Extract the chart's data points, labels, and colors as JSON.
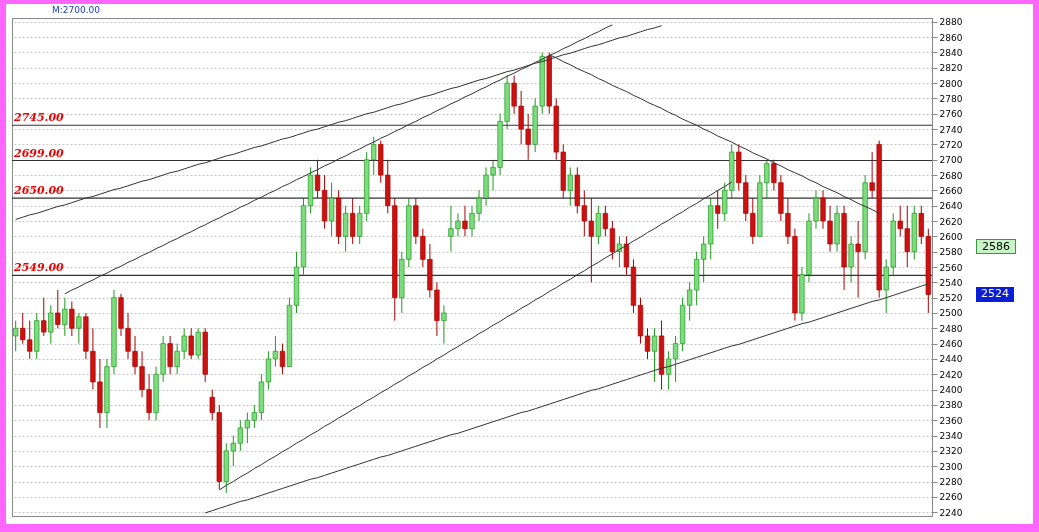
{
  "chart_data": {
    "type": "candlestick",
    "categories": [
      null,
      null,
      null,
      null,
      null,
      null,
      null,
      null,
      null,
      null,
      null,
      null,
      null,
      null,
      null,
      null,
      null,
      null,
      null,
      null,
      null,
      null,
      null,
      null,
      null,
      null,
      null,
      null,
      null,
      null,
      null,
      null,
      null,
      null,
      null,
      null,
      null,
      null,
      null,
      null,
      null,
      null,
      null,
      null,
      null,
      null,
      null,
      null,
      null,
      null,
      null,
      null,
      null,
      null,
      null,
      null,
      null,
      null,
      null,
      null,
      null,
      null,
      null,
      null,
      null,
      null,
      null,
      null,
      null,
      null,
      null,
      null,
      null,
      null,
      null,
      null,
      null,
      null,
      null,
      null,
      null,
      null,
      null,
      null,
      null,
      null,
      null,
      null,
      null,
      null,
      null,
      null,
      null,
      null,
      null,
      null,
      null,
      null,
      null,
      null,
      null,
      null,
      null,
      null,
      null,
      null,
      null,
      null,
      null,
      null,
      null,
      null,
      null,
      null,
      null,
      null,
      null,
      null,
      null,
      null,
      null,
      null,
      null,
      null,
      null,
      null,
      null,
      null,
      null,
      null,
      null
    ],
    "ohlc": [
      [
        2470,
        2490,
        2450,
        2480
      ],
      [
        2480,
        2500,
        2460,
        2465
      ],
      [
        2465,
        2490,
        2440,
        2450
      ],
      [
        2450,
        2500,
        2440,
        2490
      ],
      [
        2490,
        2520,
        2470,
        2475
      ],
      [
        2475,
        2510,
        2460,
        2500
      ],
      [
        2500,
        2530,
        2480,
        2485
      ],
      [
        2485,
        2520,
        2470,
        2505
      ],
      [
        2505,
        2515,
        2470,
        2480
      ],
      [
        2480,
        2500,
        2460,
        2495
      ],
      [
        2495,
        2500,
        2440,
        2450
      ],
      [
        2450,
        2480,
        2400,
        2410
      ],
      [
        2410,
        2440,
        2350,
        2370
      ],
      [
        2370,
        2440,
        2350,
        2430
      ],
      [
        2430,
        2530,
        2420,
        2520
      ],
      [
        2520,
        2525,
        2470,
        2480
      ],
      [
        2480,
        2500,
        2440,
        2450
      ],
      [
        2450,
        2470,
        2420,
        2430
      ],
      [
        2430,
        2450,
        2390,
        2400
      ],
      [
        2400,
        2420,
        2360,
        2370
      ],
      [
        2370,
        2430,
        2360,
        2420
      ],
      [
        2420,
        2470,
        2410,
        2460
      ],
      [
        2460,
        2470,
        2420,
        2430
      ],
      [
        2430,
        2460,
        2420,
        2450
      ],
      [
        2450,
        2480,
        2440,
        2470
      ],
      [
        2470,
        2480,
        2440,
        2445
      ],
      [
        2445,
        2480,
        2440,
        2475
      ],
      [
        2475,
        2480,
        2410,
        2420
      ],
      [
        2390,
        2400,
        2360,
        2370
      ],
      [
        2370,
        2380,
        2270,
        2280
      ],
      [
        2280,
        2330,
        2265,
        2320
      ],
      [
        2320,
        2340,
        2300,
        2330
      ],
      [
        2330,
        2360,
        2320,
        2350
      ],
      [
        2350,
        2370,
        2330,
        2360
      ],
      [
        2360,
        2380,
        2350,
        2370
      ],
      [
        2370,
        2420,
        2360,
        2410
      ],
      [
        2410,
        2450,
        2400,
        2440
      ],
      [
        2440,
        2470,
        2430,
        2450
      ],
      [
        2450,
        2460,
        2420,
        2430
      ],
      [
        2430,
        2520,
        2430,
        2510
      ],
      [
        2510,
        2580,
        2500,
        2560
      ],
      [
        2560,
        2650,
        2550,
        2640
      ],
      [
        2640,
        2690,
        2630,
        2680
      ],
      [
        2680,
        2700,
        2650,
        2660
      ],
      [
        2660,
        2680,
        2610,
        2620
      ],
      [
        2620,
        2670,
        2600,
        2650
      ],
      [
        2650,
        2660,
        2590,
        2600
      ],
      [
        2600,
        2640,
        2580,
        2630
      ],
      [
        2630,
        2650,
        2590,
        2600
      ],
      [
        2600,
        2640,
        2590,
        2630
      ],
      [
        2630,
        2710,
        2620,
        2700
      ],
      [
        2700,
        2730,
        2680,
        2720
      ],
      [
        2720,
        2725,
        2670,
        2680
      ],
      [
        2680,
        2700,
        2630,
        2640
      ],
      [
        2640,
        2650,
        2490,
        2520
      ],
      [
        2520,
        2580,
        2500,
        2570
      ],
      [
        2570,
        2650,
        2560,
        2640
      ],
      [
        2640,
        2650,
        2590,
        2600
      ],
      [
        2600,
        2610,
        2560,
        2570
      ],
      [
        2570,
        2590,
        2520,
        2530
      ],
      [
        2530,
        2540,
        2470,
        2490
      ],
      [
        2490,
        2510,
        2460,
        2500
      ],
      [
        2600,
        2640,
        2580,
        2610
      ],
      [
        2610,
        2630,
        2600,
        2620
      ],
      [
        2620,
        2640,
        2600,
        2610
      ],
      [
        2610,
        2640,
        2600,
        2630
      ],
      [
        2630,
        2660,
        2620,
        2650
      ],
      [
        2650,
        2690,
        2640,
        2680
      ],
      [
        2680,
        2700,
        2660,
        2690
      ],
      [
        2690,
        2760,
        2680,
        2750
      ],
      [
        2750,
        2810,
        2740,
        2800
      ],
      [
        2800,
        2810,
        2760,
        2770
      ],
      [
        2770,
        2790,
        2720,
        2740
      ],
      [
        2740,
        2760,
        2700,
        2720
      ],
      [
        2720,
        2780,
        2710,
        2770
      ],
      [
        2770,
        2840,
        2760,
        2835
      ],
      [
        2835,
        2840,
        2760,
        2770
      ],
      [
        2770,
        2780,
        2700,
        2710
      ],
      [
        2710,
        2720,
        2650,
        2660
      ],
      [
        2660,
        2690,
        2640,
        2680
      ],
      [
        2680,
        2690,
        2630,
        2640
      ],
      [
        2640,
        2660,
        2600,
        2620
      ],
      [
        2620,
        2650,
        2540,
        2600
      ],
      [
        2600,
        2640,
        2590,
        2630
      ],
      [
        2630,
        2640,
        2600,
        2610
      ],
      [
        2610,
        2620,
        2570,
        2580
      ],
      [
        2580,
        2600,
        2560,
        2590
      ],
      [
        2590,
        2600,
        2550,
        2560
      ],
      [
        2560,
        2570,
        2500,
        2510
      ],
      [
        2510,
        2520,
        2460,
        2470
      ],
      [
        2470,
        2480,
        2440,
        2450
      ],
      [
        2450,
        2480,
        2410,
        2470
      ],
      [
        2470,
        2490,
        2400,
        2420
      ],
      [
        2420,
        2450,
        2400,
        2440
      ],
      [
        2440,
        2470,
        2410,
        2460
      ],
      [
        2460,
        2520,
        2450,
        2510
      ],
      [
        2510,
        2540,
        2490,
        2530
      ],
      [
        2530,
        2580,
        2510,
        2570
      ],
      [
        2570,
        2600,
        2540,
        2590
      ],
      [
        2590,
        2650,
        2570,
        2640
      ],
      [
        2640,
        2660,
        2610,
        2630
      ],
      [
        2630,
        2670,
        2620,
        2660
      ],
      [
        2660,
        2720,
        2650,
        2710
      ],
      [
        2710,
        2720,
        2660,
        2670
      ],
      [
        2670,
        2680,
        2620,
        2630
      ],
      [
        2630,
        2650,
        2590,
        2600
      ],
      [
        2600,
        2680,
        2600,
        2670
      ],
      [
        2670,
        2700,
        2650,
        2695
      ],
      [
        2695,
        2700,
        2660,
        2670
      ],
      [
        2670,
        2680,
        2620,
        2630
      ],
      [
        2630,
        2650,
        2590,
        2600
      ],
      [
        2600,
        2610,
        2490,
        2500
      ],
      [
        2500,
        2560,
        2490,
        2550
      ],
      [
        2550,
        2630,
        2540,
        2620
      ],
      [
        2620,
        2660,
        2610,
        2650
      ],
      [
        2650,
        2660,
        2610,
        2620
      ],
      [
        2620,
        2640,
        2580,
        2590
      ],
      [
        2590,
        2640,
        2580,
        2630
      ],
      [
        2630,
        2640,
        2530,
        2560
      ],
      [
        2560,
        2600,
        2540,
        2590
      ],
      [
        2590,
        2620,
        2520,
        2580
      ],
      [
        2580,
        2680,
        2570,
        2670
      ],
      [
        2670,
        2710,
        2650,
        2660
      ],
      [
        2720,
        2725,
        2520,
        2530
      ],
      [
        2530,
        2570,
        2500,
        2560
      ],
      [
        2560,
        2630,
        2550,
        2620
      ],
      [
        2620,
        2640,
        2600,
        2610
      ],
      [
        2610,
        2640,
        2560,
        2580
      ],
      [
        2580,
        2640,
        2570,
        2630
      ],
      [
        2630,
        2640,
        2590,
        2600
      ],
      [
        2600,
        2610,
        2500,
        2524
      ]
    ],
    "series": [
      {
        "type": "line",
        "color": "#333333",
        "values": [
          null,
          null,
          null,
          null,
          null,
          null,
          null,
          2525,
          2530,
          2534,
          2539,
          2543,
          2548,
          2552,
          2557,
          2561,
          2566,
          2570,
          2575,
          2579,
          2584,
          2588,
          2593,
          2597,
          2602,
          2606,
          2611,
          2615,
          2620,
          2624,
          2629,
          2633,
          2638,
          2642,
          2647,
          2651,
          2656,
          2660,
          2665,
          2669,
          2674,
          2678,
          2683,
          2687,
          2692,
          2696,
          2701,
          2705,
          2710,
          2714,
          2719,
          2723,
          2728,
          2732,
          2737,
          2741,
          2746,
          2750,
          2755,
          2759,
          2764,
          2768,
          2773,
          2777,
          2782,
          2786,
          2791,
          2795,
          2800,
          2804,
          2809,
          2813,
          2818,
          2822,
          2827,
          2831,
          2836,
          2840,
          2845,
          2849,
          2854,
          2858,
          2863,
          2867,
          2872,
          2876,
          null,
          null,
          null,
          null,
          null,
          null,
          null,
          null,
          null,
          null,
          null,
          null,
          null,
          null,
          null,
          null,
          null,
          null,
          null,
          null,
          null,
          null,
          null,
          null,
          null,
          null,
          null,
          null,
          null,
          null,
          null,
          null,
          null,
          null,
          null,
          null,
          null,
          null,
          null,
          null,
          null,
          null,
          null,
          null,
          null
        ]
      },
      {
        "type": "line",
        "color": "#333333",
        "values": [
          2622,
          2625,
          2628,
          2630,
          2633,
          2636,
          2639,
          2641,
          2644,
          2647,
          2650,
          2652,
          2655,
          2658,
          2661,
          2663,
          2666,
          2669,
          2672,
          2674,
          2677,
          2680,
          2683,
          2685,
          2688,
          2691,
          2694,
          2696,
          2699,
          2702,
          2705,
          2707,
          2710,
          2713,
          2716,
          2718,
          2721,
          2724,
          2727,
          2729,
          2732,
          2735,
          2738,
          2740,
          2743,
          2746,
          2749,
          2751,
          2754,
          2757,
          2760,
          2762,
          2765,
          2768,
          2771,
          2773,
          2776,
          2779,
          2782,
          2784,
          2787,
          2790,
          2793,
          2795,
          2798,
          2801,
          2804,
          2806,
          2809,
          2812,
          2815,
          2817,
          2820,
          2823,
          2826,
          2828,
          2831,
          2834,
          2837,
          2839,
          2842,
          2845,
          2848,
          2850,
          2853,
          2856,
          2859,
          2861,
          2864,
          2867,
          2870,
          2872,
          2875,
          null,
          null,
          null,
          null,
          null,
          null,
          null,
          null,
          null,
          null,
          null,
          null,
          null,
          null,
          null,
          null,
          null,
          null,
          null,
          null,
          null,
          null,
          null,
          null,
          null,
          null,
          null,
          null,
          null,
          null,
          null,
          null,
          null,
          null,
          null,
          null,
          null,
          null
        ]
      },
      {
        "type": "line",
        "color": "#333333",
        "values": [
          null,
          null,
          null,
          null,
          null,
          null,
          null,
          null,
          null,
          null,
          null,
          null,
          null,
          null,
          null,
          null,
          null,
          null,
          null,
          null,
          null,
          null,
          null,
          null,
          null,
          null,
          null,
          2239,
          2242,
          2245,
          2248,
          2251,
          2254,
          2256,
          2259,
          2262,
          2265,
          2268,
          2271,
          2274,
          2277,
          2280,
          2283,
          2285,
          2288,
          2291,
          2294,
          2297,
          2300,
          2303,
          2306,
          2309,
          2312,
          2314,
          2317,
          2320,
          2323,
          2326,
          2329,
          2332,
          2335,
          2338,
          2341,
          2343,
          2346,
          2349,
          2352,
          2355,
          2358,
          2361,
          2364,
          2367,
          2370,
          2372,
          2375,
          2378,
          2381,
          2384,
          2387,
          2390,
          2393,
          2396,
          2399,
          2401,
          2404,
          2407,
          2410,
          2413,
          2416,
          2419,
          2422,
          2425,
          2428,
          2430,
          2433,
          2436,
          2439,
          2442,
          2445,
          2448,
          2451,
          2454,
          2457,
          2459,
          2462,
          2465,
          2468,
          2471,
          2474,
          2477,
          2480,
          2483,
          2486,
          2488,
          2491,
          2494,
          2497,
          2500,
          2503,
          2506,
          2509,
          2512,
          2515,
          2517,
          2520,
          2523,
          2526,
          2529,
          2532,
          2535,
          2538
        ]
      },
      {
        "type": "line",
        "color": "#333333",
        "values": [
          null,
          null,
          null,
          null,
          null,
          null,
          null,
          null,
          null,
          null,
          null,
          null,
          null,
          null,
          null,
          null,
          null,
          null,
          null,
          null,
          null,
          null,
          null,
          null,
          null,
          null,
          null,
          null,
          null,
          2269,
          2275,
          2280,
          2286,
          2291,
          2297,
          2302,
          2308,
          2313,
          2319,
          2324,
          2330,
          2335,
          2341,
          2346,
          2352,
          2357,
          2363,
          2368,
          2374,
          2379,
          2385,
          2390,
          2396,
          2401,
          2407,
          2412,
          2418,
          2423,
          2429,
          2434,
          2440,
          2445,
          2451,
          2456,
          2462,
          2467,
          2473,
          2478,
          2484,
          2489,
          2495,
          2500,
          2506,
          2511,
          2517,
          2522,
          2528,
          2533,
          2539,
          2544,
          2550,
          2555,
          2561,
          2566,
          2572,
          2577,
          2583,
          2588,
          2594,
          2599,
          2605,
          2610,
          2616,
          2621,
          2627,
          2632,
          2638,
          2643,
          2649,
          2654,
          2660,
          2665,
          2671,
          null,
          null,
          null,
          null,
          null,
          null,
          null,
          null,
          null,
          null,
          null,
          null,
          null,
          null,
          null,
          null,
          null,
          null,
          null,
          null,
          null,
          null,
          null,
          null,
          null,
          null,
          null,
          null
        ]
      },
      {
        "type": "line",
        "color": "#333333",
        "values": [
          null,
          null,
          null,
          null,
          null,
          null,
          null,
          null,
          null,
          null,
          null,
          null,
          null,
          null,
          null,
          null,
          null,
          null,
          null,
          null,
          null,
          null,
          null,
          null,
          null,
          null,
          null,
          null,
          null,
          null,
          null,
          null,
          null,
          null,
          null,
          null,
          null,
          null,
          null,
          null,
          null,
          null,
          null,
          null,
          null,
          null,
          null,
          null,
          null,
          null,
          null,
          null,
          null,
          null,
          null,
          null,
          null,
          null,
          null,
          null,
          null,
          null,
          null,
          null,
          null,
          null,
          null,
          null,
          null,
          null,
          null,
          null,
          null,
          null,
          null,
          null,
          2837,
          2833,
          2828,
          2824,
          2819,
          2815,
          2811,
          2806,
          2802,
          2797,
          2793,
          2789,
          2784,
          2780,
          2775,
          2771,
          2767,
          2762,
          2758,
          2753,
          2749,
          2745,
          2740,
          2736,
          2731,
          2727,
          2723,
          2718,
          2714,
          2709,
          2705,
          2701,
          2696,
          2692,
          2687,
          2683,
          2679,
          2674,
          2670,
          2665,
          2661,
          2657,
          2652,
          2648,
          2643,
          2639,
          2635,
          2630,
          null,
          null,
          null,
          null,
          null,
          null,
          null
        ]
      }
    ],
    "ylim": [
      2235,
      2885
    ],
    "yticks": [
      2240,
      2260,
      2280,
      2300,
      2320,
      2340,
      2360,
      2380,
      2400,
      2420,
      2440,
      2460,
      2480,
      2500,
      2520,
      2540,
      2560,
      2580,
      2600,
      2620,
      2640,
      2660,
      2680,
      2700,
      2720,
      2740,
      2760,
      2780,
      2800,
      2820,
      2840,
      2860,
      2880
    ],
    "ref_lines": [
      {
        "axis": "y",
        "value": 2745,
        "label": "2745.00",
        "color": "#333333"
      },
      {
        "axis": "y",
        "value": 2699,
        "label": "2699.00",
        "color": "#333333"
      },
      {
        "axis": "y",
        "value": 2650,
        "label": "2650.00",
        "color": "#333333"
      },
      {
        "axis": "y",
        "value": 2549,
        "label": "2549.00",
        "color": "#333333"
      }
    ],
    "annotations": [
      "M:2700.00",
      "2586",
      "2524"
    ],
    "grid": "y",
    "tick_labels": "y"
  }
}
